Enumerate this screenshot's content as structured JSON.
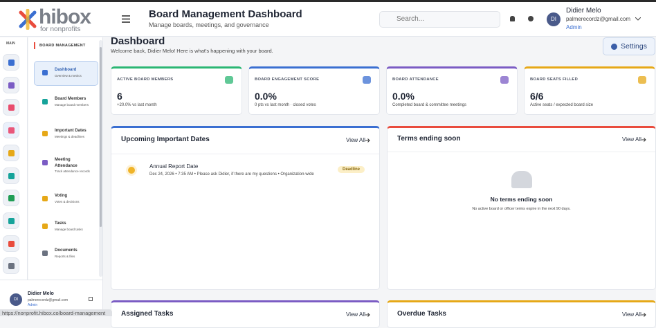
{
  "header": {
    "logo_name": "hibox",
    "logo_tagline": "for nonprofits",
    "title": "Board Management Dashboard",
    "subtitle": "Manage boards, meetings, and governance",
    "search_placeholder": "Search...",
    "user": {
      "initials": "DI",
      "name": "Didier Melo",
      "email": "palmerecordz@gmail.com",
      "role": "Admin"
    }
  },
  "sidebar": {
    "rail_label": "MAIN",
    "section": "BOARD MANAGEMENT",
    "items": [
      {
        "label": "Dashboard",
        "desc": "Overview & metrics"
      },
      {
        "label": "Board Members",
        "desc": "Manage board members"
      },
      {
        "label": "Important Dates",
        "desc": "Meetings & deadlines"
      },
      {
        "label": "Meeting Attendance",
        "desc": "Track attendance records"
      },
      {
        "label": "Voting",
        "desc": "Votes & decisions"
      },
      {
        "label": "Tasks",
        "desc": "Manage board tasks"
      },
      {
        "label": "Documents",
        "desc": "Reports & files"
      }
    ],
    "user": {
      "initials": "DI",
      "name": "Didier Melo",
      "email": "palmerecordz@gmail.com",
      "role": "Admin"
    }
  },
  "status_url": "https://nonprofit.hibox.co/board-management",
  "page": {
    "title": "Dashboard",
    "welcome": "Welcome back, Didier Melo! Here is what's happening with your board.",
    "settings": "Settings"
  },
  "stats": [
    {
      "label": "ACTIVE BOARD MEMBERS",
      "value": "6",
      "note": "+20.0% vs last month"
    },
    {
      "label": "BOARD ENGAGEMENT SCORE",
      "value": "0.0%",
      "note": "0 pts vs last month · closed votes"
    },
    {
      "label": "BOARD ATTENDANCE",
      "value": "0.0%",
      "note": "Completed board & committee meetings"
    },
    {
      "label": "BOARD SEATS FILLED",
      "value": "6/6",
      "note": "Active seats / expected board size"
    }
  ],
  "upcoming": {
    "title": "Upcoming Important Dates",
    "action": "View All",
    "events": [
      {
        "title": "Annual Report Date",
        "meta": "Dec 24, 2026 • 7:35 AM • Please ask Didier, if there are my questions • Organization-wide",
        "badge": "Deadline"
      }
    ]
  },
  "terms": {
    "title": "Terms ending soon",
    "action": "View All",
    "empty_title": "No terms ending soon",
    "empty_text": "No active board or officer terms expire in the next 90 days."
  },
  "assigned": {
    "title": "Assigned Tasks",
    "action": "View All"
  },
  "overdue": {
    "title": "Overdue Tasks",
    "action": "View All"
  }
}
